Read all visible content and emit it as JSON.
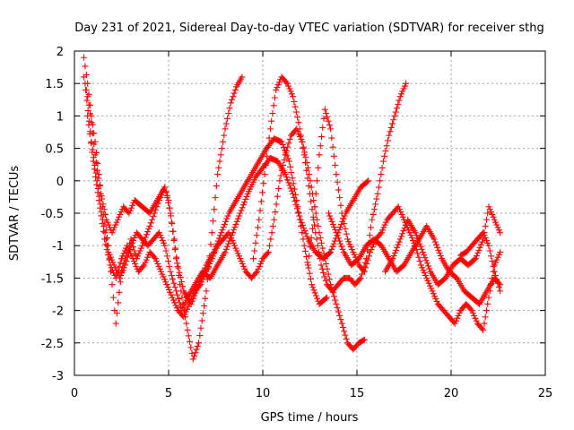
{
  "chart_data": {
    "type": "scatter",
    "title": "Day 231 of 2021, Sidereal Day-to-day VTEC variation (SDTVAR) for receiver sthg",
    "xlabel": "GPS time / hours",
    "ylabel": "SDTVAR / TECUs",
    "xlim": [
      0,
      25
    ],
    "ylim": [
      -3,
      2
    ],
    "xticks": [
      0,
      5,
      10,
      15,
      20,
      25
    ],
    "yticks": [
      -3,
      -2.5,
      -2,
      -1.5,
      -1,
      -0.5,
      0,
      0.5,
      1,
      1.5,
      2
    ],
    "xtick_labels": [
      "0",
      "5",
      "10",
      "15",
      "20",
      "25"
    ],
    "ytick_labels": [
      "-3",
      "-2.5",
      "-2",
      "-1.5",
      "-1",
      "-0.5",
      "0",
      "0.5",
      "1",
      "1.5",
      "2"
    ],
    "grid": true,
    "marker": "+",
    "color": "#ff0000",
    "series": [
      {
        "x": [
          0.5,
          0.7,
          0.9,
          1.1,
          1.3,
          1.5,
          1.8,
          2.0,
          2.2,
          2.5,
          2.8,
          3.0,
          3.3,
          3.6,
          4.0,
          4.5,
          4.8,
          5.0,
          5.3,
          5.6,
          6.0,
          6.3,
          6.6,
          7.0,
          7.3,
          7.6,
          8.0,
          8.3,
          8.6,
          8.9
        ],
        "y": [
          1.9,
          1.5,
          1.0,
          0.6,
          0.1,
          -0.4,
          -1.0,
          -1.6,
          -2.2,
          -1.4,
          -1.1,
          -0.9,
          -1.2,
          -1.0,
          -0.7,
          -0.3,
          -0.1,
          -0.3,
          -0.9,
          -1.6,
          -2.3,
          -2.75,
          -2.5,
          -1.7,
          -0.8,
          0.1,
          0.8,
          1.2,
          1.45,
          1.6
        ]
      },
      {
        "x": [
          0.5,
          0.7,
          0.9,
          1.1,
          1.4,
          1.7,
          2.0,
          2.3,
          2.6,
          2.9,
          3.2,
          3.6,
          4.0,
          4.4,
          4.8,
          5.1,
          5.4,
          5.8,
          6.2,
          6.6,
          7.0,
          7.4,
          7.8,
          8.2,
          8.6,
          9.0,
          9.4,
          9.8,
          10.2,
          10.6,
          11.0,
          11.4,
          11.8,
          12.2,
          12.6,
          13.0,
          13.4
        ],
        "y": [
          1.6,
          1.3,
          0.9,
          0.4,
          -0.2,
          -0.6,
          -0.8,
          -0.6,
          -0.4,
          -0.5,
          -0.3,
          -0.4,
          -0.5,
          -0.3,
          -0.1,
          -0.5,
          -1.2,
          -1.7,
          -1.9,
          -1.6,
          -1.3,
          -1.1,
          -0.8,
          -0.5,
          -0.3,
          -0.1,
          0.1,
          0.3,
          0.5,
          0.65,
          0.6,
          0.3,
          -0.3,
          -1.0,
          -1.6,
          -1.9,
          -1.8
        ]
      },
      {
        "x": [
          0.6,
          0.9,
          1.2,
          1.5,
          1.8,
          2.1,
          2.4,
          2.7,
          3.0,
          3.3,
          3.6,
          3.9,
          4.2,
          4.5,
          4.8,
          5.1,
          5.4,
          5.7,
          6.0,
          6.4,
          6.8,
          7.2,
          7.6,
          8.0,
          8.4,
          8.8,
          9.2,
          9.6,
          10.0,
          10.4,
          10.8,
          11.2,
          11.6,
          12.0,
          12.4,
          12.8,
          13.2,
          13.6,
          14.0,
          14.4,
          14.8,
          15.2,
          15.6
        ],
        "y": [
          1.4,
          0.6,
          0.0,
          -0.6,
          -1.1,
          -1.3,
          -1.5,
          -1.3,
          -1.0,
          -0.8,
          -0.9,
          -1.0,
          -0.9,
          -0.8,
          -1.0,
          -1.4,
          -1.7,
          -2.0,
          -1.8,
          -1.6,
          -1.4,
          -1.5,
          -1.3,
          -1.1,
          -0.8,
          -0.5,
          -0.2,
          0.05,
          0.2,
          0.35,
          0.3,
          0.1,
          -0.2,
          -0.6,
          -0.9,
          -1.1,
          -1.2,
          -1.1,
          -0.8,
          -0.5,
          -0.3,
          -0.1,
          0.0
        ]
      },
      {
        "x": [
          0.7,
          1.0,
          1.3,
          1.6,
          1.9,
          2.2,
          2.5,
          2.8,
          3.1,
          3.4,
          3.7,
          4.0,
          4.3,
          4.6,
          4.9,
          5.2,
          5.5,
          5.8,
          6.1,
          6.4,
          6.7,
          7.0,
          7.3,
          7.6,
          7.9,
          8.2,
          8.5,
          8.8,
          9.1,
          9.4,
          9.7,
          10.0,
          10.3,
          10.6,
          10.9,
          11.2,
          11.5,
          11.8,
          12.1,
          12.4,
          12.7,
          13.0,
          13.3,
          13.6,
          13.9,
          14.2,
          14.5,
          14.8,
          15.1,
          15.4
        ],
        "y": [
          1.0,
          0.3,
          -0.3,
          -0.9,
          -1.3,
          -1.5,
          -1.2,
          -1.0,
          -1.2,
          -1.4,
          -1.3,
          -1.1,
          -1.2,
          -1.4,
          -1.6,
          -1.8,
          -2.0,
          -2.1,
          -1.9,
          -1.7,
          -1.6,
          -1.4,
          -1.2,
          -1.0,
          -0.9,
          -0.8,
          -1.0,
          -1.2,
          -1.4,
          -1.5,
          -1.4,
          -1.2,
          -1.1,
          -0.6,
          0.0,
          0.4,
          0.7,
          0.8,
          0.6,
          0.2,
          -0.3,
          -0.8,
          -1.2,
          -1.6,
          -1.9,
          -2.2,
          -2.5,
          -2.6,
          -2.5,
          -2.45
        ]
      },
      {
        "x": [
          9.5,
          9.8,
          10.1,
          10.4,
          10.7,
          11.0,
          11.3,
          11.6,
          11.9,
          12.2,
          12.5,
          12.8,
          13.1,
          13.4,
          13.7,
          14.0,
          14.3,
          14.6,
          14.9,
          15.2,
          15.5,
          15.8,
          16.1,
          16.4,
          16.7,
          17.0,
          17.3,
          17.6
        ],
        "y": [
          -1.2,
          -0.6,
          0.1,
          0.8,
          1.4,
          1.6,
          1.5,
          1.3,
          0.9,
          0.4,
          -0.2,
          -0.8,
          -1.3,
          -1.6,
          -1.7,
          -1.6,
          -1.5,
          -1.5,
          -1.6,
          -1.5,
          -1.2,
          -0.6,
          -0.2,
          0.3,
          0.7,
          1.0,
          1.3,
          1.5
        ]
      },
      {
        "x": [
          12.4,
          12.7,
          13.0,
          13.3,
          13.6,
          13.9,
          14.2,
          14.5,
          14.8,
          15.1,
          15.4,
          15.7,
          16.0,
          16.3,
          16.6,
          16.9,
          17.2,
          17.5,
          17.8,
          18.1,
          18.4,
          18.7,
          19.0,
          19.3,
          19.6,
          19.9,
          20.2,
          20.5,
          20.8,
          21.1,
          21.4,
          21.7,
          22.0,
          22.3,
          22.6
        ],
        "y": [
          -1.3,
          -0.6,
          0.4,
          1.1,
          0.8,
          0.1,
          -0.5,
          -0.9,
          -1.1,
          -1.3,
          -1.4,
          -1.1,
          -0.9,
          -0.8,
          -0.6,
          -0.5,
          -0.4,
          -0.6,
          -0.8,
          -1.0,
          -1.3,
          -1.5,
          -1.7,
          -1.9,
          -2.0,
          -2.1,
          -2.2,
          -2.0,
          -1.9,
          -2.0,
          -2.2,
          -2.3,
          -1.8,
          -1.3,
          -1.1
        ]
      },
      {
        "x": [
          13.5,
          13.9,
          14.3,
          14.7,
          15.1,
          15.5,
          15.9,
          16.3,
          16.7,
          17.1,
          17.5,
          17.9,
          18.3,
          18.7,
          19.1,
          19.5,
          19.9,
          20.3,
          20.7,
          21.1,
          21.5,
          21.9,
          22.3,
          22.6
        ],
        "y": [
          -0.5,
          -0.8,
          -1.1,
          -1.3,
          -1.2,
          -1.0,
          -0.9,
          -1.0,
          -1.2,
          -1.4,
          -1.3,
          -1.1,
          -0.9,
          -0.7,
          -0.9,
          -1.2,
          -1.4,
          -1.5,
          -1.7,
          -1.8,
          -1.9,
          -1.7,
          -1.5,
          -1.6
        ]
      },
      {
        "x": [
          16.5,
          16.9,
          17.3,
          17.7,
          18.1,
          18.5,
          18.9,
          19.3,
          19.7,
          20.1,
          20.5,
          20.9,
          21.3,
          21.7,
          22.0,
          22.3,
          22.6
        ],
        "y": [
          -1.4,
          -1.2,
          -0.9,
          -0.6,
          -0.8,
          -1.1,
          -1.4,
          -1.6,
          -1.5,
          -1.3,
          -1.2,
          -1.3,
          -1.2,
          -0.9,
          -0.4,
          -0.6,
          -0.8
        ]
      },
      {
        "x": [
          20.5,
          20.8,
          21.1,
          21.4,
          21.7,
          22.0,
          22.3,
          22.6
        ],
        "y": [
          -1.15,
          -1.1,
          -1.0,
          -0.9,
          -0.8,
          -1.0,
          -1.4,
          -1.7
        ]
      }
    ]
  }
}
